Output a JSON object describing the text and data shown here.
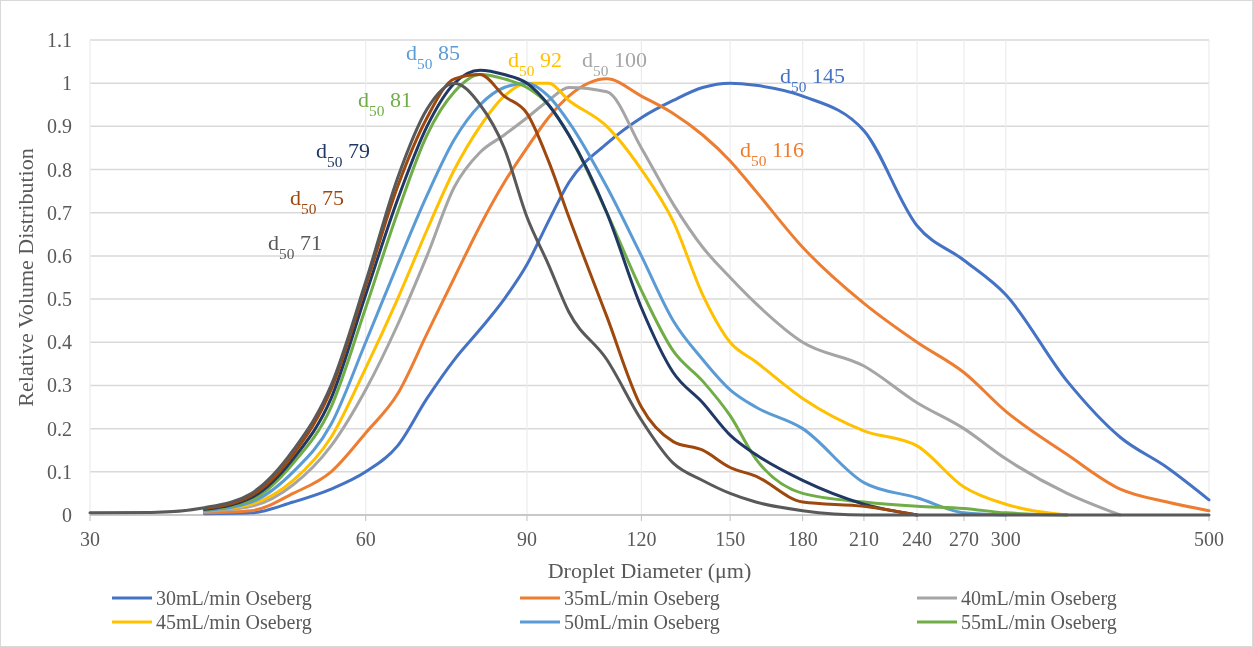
{
  "chart_data": {
    "type": "line",
    "xlabel": "Droplet Diameter (μm)",
    "ylabel": "Relative Volume Distribution",
    "log": "x",
    "grid": true,
    "legend": "bottom",
    "xlim": [
      30,
      500
    ],
    "xticks": [
      30,
      60,
      90,
      120,
      150,
      180,
      210,
      240,
      270,
      300,
      500
    ],
    "ylim": [
      0,
      1.1
    ],
    "yticks": [
      0,
      0.1,
      0.2,
      0.3,
      0.4,
      0.5,
      0.6,
      0.7,
      0.8,
      0.9,
      1,
      1.1
    ],
    "x": [
      30,
      35,
      40,
      45,
      50,
      55,
      60,
      65,
      70,
      75,
      80,
      85,
      90,
      95,
      100,
      110,
      120,
      130,
      140,
      150,
      160,
      180,
      210,
      240,
      270,
      300,
      350,
      400,
      450,
      500
    ],
    "series": [
      {
        "name": "30mL/min Oseberg",
        "color": "#4472c4",
        "values": [
          null,
          null,
          0.003,
          0.005,
          0.03,
          0.06,
          0.1,
          0.16,
          0.27,
          0.36,
          0.43,
          0.5,
          0.58,
          0.68,
          0.77,
          0.86,
          0.92,
          0.96,
          0.99,
          1.0,
          0.995,
          0.97,
          0.89,
          0.67,
          0.59,
          0.51,
          0.31,
          0.18,
          0.11,
          0.035
        ]
      },
      {
        "name": "35mL/min Oseberg",
        "color": "#ed7d31",
        "values": [
          null,
          null,
          0.005,
          0.01,
          0.05,
          0.1,
          0.19,
          0.28,
          0.42,
          0.55,
          0.67,
          0.77,
          0.85,
          0.92,
          0.97,
          1.01,
          0.97,
          0.93,
          0.88,
          0.82,
          0.75,
          0.62,
          0.49,
          0.4,
          0.33,
          0.24,
          0.14,
          0.06,
          0.03,
          0.01
        ]
      },
      {
        "name": "40mL/min Oseberg",
        "color": "#a5a5a5",
        "values": [
          null,
          null,
          0.008,
          0.02,
          0.07,
          0.16,
          0.29,
          0.44,
          0.6,
          0.76,
          0.84,
          0.88,
          0.92,
          0.96,
          0.99,
          0.98,
          0.85,
          0.72,
          0.62,
          0.55,
          0.49,
          0.4,
          0.345,
          0.26,
          0.2,
          0.13,
          0.05,
          0,
          null,
          null
        ]
      },
      {
        "name": "45mL/min Oseberg",
        "color": "#ffc000",
        "values": [
          null,
          null,
          0.01,
          0.025,
          0.08,
          0.18,
          0.34,
          0.5,
          0.66,
          0.8,
          0.9,
          0.97,
          1.0,
          1.0,
          0.96,
          0.9,
          0.8,
          0.68,
          0.51,
          0.4,
          0.355,
          0.27,
          0.195,
          0.16,
          0.065,
          0.025,
          0,
          null,
          null,
          null
        ]
      },
      {
        "name": "50mL/min Oseberg",
        "color": "#5b9bd5",
        "values": [
          null,
          null,
          0.01,
          0.03,
          0.1,
          0.21,
          0.4,
          0.58,
          0.74,
          0.87,
          0.95,
          0.99,
          1.0,
          0.97,
          0.91,
          0.76,
          0.6,
          0.45,
          0.36,
          0.29,
          0.25,
          0.2,
          0.075,
          0.04,
          0.005,
          0,
          null,
          null,
          null,
          null
        ]
      },
      {
        "name": "55mL/min Oseberg",
        "color": "#70ad47",
        "values": [
          null,
          null,
          0.012,
          0.035,
          0.12,
          0.25,
          0.48,
          0.7,
          0.88,
          0.98,
          1.02,
          1.01,
          0.99,
          0.95,
          0.88,
          0.7,
          0.52,
          0.38,
          0.31,
          0.23,
          0.13,
          0.05,
          0.03,
          0.02,
          0.015,
          0.005,
          0,
          null,
          null,
          null
        ]
      },
      {
        "color": "#1f3864",
        "values": [
          null,
          null,
          0.013,
          0.04,
          0.13,
          0.27,
          0.51,
          0.73,
          0.9,
          1.0,
          1.03,
          1.02,
          1.0,
          0.95,
          0.88,
          0.7,
          0.48,
          0.33,
          0.26,
          0.185,
          0.14,
          0.08,
          0.025,
          0,
          null,
          null,
          null,
          null,
          null,
          null
        ]
      },
      {
        "color": "#9e480e",
        "values": [
          null,
          null,
          0.015,
          0.045,
          0.14,
          0.29,
          0.53,
          0.76,
          0.92,
          1.01,
          1.02,
          0.97,
          0.93,
          0.82,
          0.69,
          0.46,
          0.25,
          0.17,
          0.15,
          0.11,
          0.09,
          0.03,
          0.02,
          0,
          null,
          null,
          null,
          null,
          null,
          null
        ]
      },
      {
        "color": "#595959",
        "values": [
          0.005,
          0.006,
          0.017,
          0.05,
          0.15,
          0.3,
          0.54,
          0.78,
          0.94,
          1.0,
          0.95,
          0.85,
          0.69,
          0.58,
          0.47,
          0.36,
          0.22,
          0.12,
          0.08,
          0.05,
          0.03,
          0.01,
          0,
          0,
          0,
          0,
          0,
          0,
          0,
          0
        ]
      }
    ],
    "annotations": [
      "d$_{50}$ 145",
      "d$_{50}$ 116",
      "d$_{50}$ 100",
      "d$_{50}$ 92",
      "d$_{50}$ 85",
      "d$_{50}$ 81",
      "d$_{50}$ 79",
      "d$_{50}$ 75",
      "d$_{50}$ 71"
    ]
  }
}
